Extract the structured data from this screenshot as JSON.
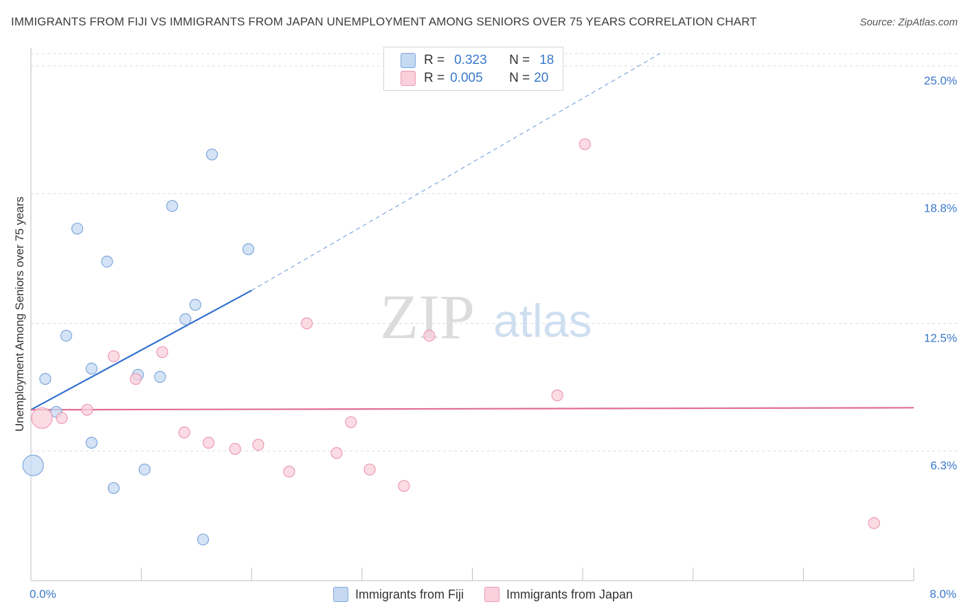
{
  "title": "IMMIGRANTS FROM FIJI VS IMMIGRANTS FROM JAPAN UNEMPLOYMENT AMONG SENIORS OVER 75 YEARS CORRELATION CHART",
  "source": "Source: ZipAtlas.com",
  "watermark": {
    "zip": "ZIP",
    "atlas": "atlas"
  },
  "stats": {
    "fiji": {
      "r_label": "R =",
      "r_value": "0.323",
      "n_label": "N =",
      "n_value": "18"
    },
    "japan": {
      "r_label": "R =",
      "r_value": "0.005",
      "n_label": "N =",
      "n_value": "20"
    }
  },
  "colors": {
    "fiji_fill": "#c5d9f2",
    "fiji_stroke": "#7da7dc",
    "fiji_line": "#2f6fcf",
    "japan_fill": "#f9d0dc",
    "japan_stroke": "#ec98b2",
    "japan_line": "#e06c8f",
    "axis_label": "#3a78c9"
  },
  "chart_data": {
    "type": "scatter",
    "title": "IMMIGRANTS FROM FIJI VS IMMIGRANTS FROM JAPAN UNEMPLOYMENT AMONG SENIORS OVER 75 YEARS CORRELATION CHART",
    "xlabel": "",
    "ylabel": "Unemployment Among Seniors over 75 years",
    "xlim": [
      0,
      8
    ],
    "ylim": [
      0,
      25.6
    ],
    "x_tick_labels": [
      {
        "value": 0,
        "label": "0.0%"
      },
      {
        "value": 8,
        "label": "8.0%"
      }
    ],
    "y_tick_labels": [
      {
        "value": 6.3,
        "label": "6.3%"
      },
      {
        "value": 12.5,
        "label": "12.5%"
      },
      {
        "value": 18.8,
        "label": "18.8%"
      },
      {
        "value": 25.0,
        "label": "25.0%"
      }
    ],
    "grid": true,
    "legend_position": "bottom",
    "series": [
      {
        "name": "Immigrants from Fiji",
        "color": "#7da7dc",
        "points": [
          {
            "x": 0.02,
            "y": 5.6,
            "size": "large"
          },
          {
            "x": 0.13,
            "y": 9.8
          },
          {
            "x": 0.23,
            "y": 8.2
          },
          {
            "x": 0.42,
            "y": 17.1
          },
          {
            "x": 0.32,
            "y": 11.9
          },
          {
            "x": 0.55,
            "y": 10.3
          },
          {
            "x": 0.69,
            "y": 15.5
          },
          {
            "x": 0.55,
            "y": 6.7
          },
          {
            "x": 0.75,
            "y": 4.5
          },
          {
            "x": 0.97,
            "y": 10.0
          },
          {
            "x": 1.03,
            "y": 5.4
          },
          {
            "x": 1.17,
            "y": 9.9
          },
          {
            "x": 1.28,
            "y": 18.2
          },
          {
            "x": 1.4,
            "y": 12.7
          },
          {
            "x": 1.49,
            "y": 13.4
          },
          {
            "x": 1.56,
            "y": 2.0
          },
          {
            "x": 1.64,
            "y": 20.7
          },
          {
            "x": 1.97,
            "y": 16.1
          }
        ],
        "trendline": {
          "x_start": 0,
          "y_start": 8.3,
          "x_solid_end": 2.0,
          "y_solid_end": 14.1,
          "x_dashed_end": 5.7,
          "y_dashed_end": 25.6
        }
      },
      {
        "name": "Immigrants from Japan",
        "color": "#ec98b2",
        "points": [
          {
            "x": 0.1,
            "y": 7.9,
            "size": "large"
          },
          {
            "x": 0.28,
            "y": 7.9
          },
          {
            "x": 0.51,
            "y": 8.3
          },
          {
            "x": 0.75,
            "y": 10.9
          },
          {
            "x": 0.95,
            "y": 9.8
          },
          {
            "x": 1.19,
            "y": 11.1
          },
          {
            "x": 1.39,
            "y": 7.2
          },
          {
            "x": 1.61,
            "y": 6.7
          },
          {
            "x": 1.85,
            "y": 6.4
          },
          {
            "x": 2.06,
            "y": 6.6
          },
          {
            "x": 2.34,
            "y": 5.3
          },
          {
            "x": 2.5,
            "y": 12.5
          },
          {
            "x": 2.77,
            "y": 6.2
          },
          {
            "x": 2.9,
            "y": 7.7
          },
          {
            "x": 3.07,
            "y": 5.4
          },
          {
            "x": 3.38,
            "y": 4.6
          },
          {
            "x": 3.61,
            "y": 11.9
          },
          {
            "x": 4.77,
            "y": 9.0
          },
          {
            "x": 5.02,
            "y": 21.2
          },
          {
            "x": 7.64,
            "y": 2.8
          }
        ],
        "trendline": {
          "x_start": 0,
          "y_start": 8.3,
          "x_end": 8.0,
          "y_end": 8.4
        }
      }
    ]
  }
}
